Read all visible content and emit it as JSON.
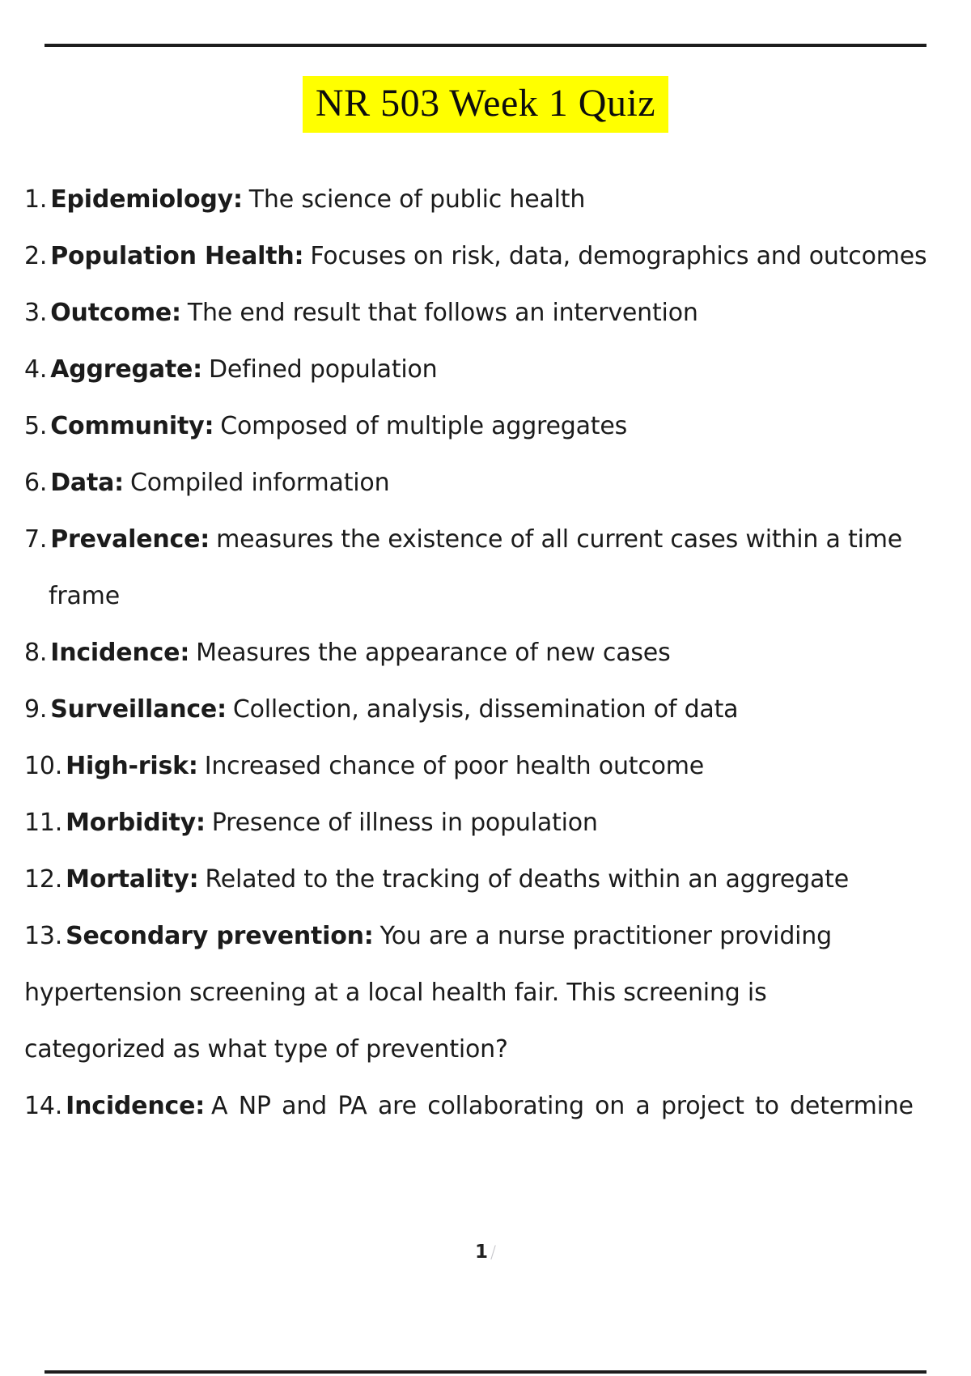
{
  "page": {
    "title": "NR 503 Week 1 Quiz",
    "highlight_color": "#ffff00",
    "page_number": "1",
    "page_number_suffix": "/"
  },
  "items": [
    {
      "number": "1.",
      "term": "Epidemiology:",
      "text": "The science of public health"
    },
    {
      "number": "2.",
      "term": "Population Health:",
      "text": "Focuses on risk, data, demographics and outcomes"
    },
    {
      "number": "3.",
      "term": "Outcome:",
      "text": "The end result that follows an intervention"
    },
    {
      "number": "4.",
      "term": "Aggregate:",
      "text": "Defined population"
    },
    {
      "number": "5.",
      "term": "Community:",
      "text": "Composed of multiple aggregates"
    },
    {
      "number": "6.",
      "term": "Data:",
      "text": "Compiled information"
    },
    {
      "number": "7.",
      "term": "Prevalence:",
      "text": "measures the existence of all current cases within a time",
      "continuation_indented": [
        "frame"
      ]
    },
    {
      "number": "8.",
      "term": "Incidence:",
      "text": "Measures the appearance of new cases"
    },
    {
      "number": "9.",
      "term": "Surveillance:",
      "text": "Collection, analysis, dissemination of data"
    },
    {
      "number": "10.",
      "term": "High-risk:",
      "text": "Increased chance of poor health outcome"
    },
    {
      "number": "11.",
      "term": "Morbidity:",
      "text": "Presence of illness in population"
    },
    {
      "number": "12.",
      "term": "Mortality:",
      "text": "Related to the tracking of deaths within an aggregate"
    },
    {
      "number": "13.",
      "term": "Secondary prevention:",
      "text": "You are a nurse practitioner providing",
      "continuation_flush": [
        "hypertension screening at a local health fair. This screening is",
        "categorized as what type of prevention?"
      ]
    },
    {
      "number": "14.",
      "term": "Incidence:",
      "text": "A NP and PA are collaborating on a project to determine",
      "justified": true
    }
  ]
}
